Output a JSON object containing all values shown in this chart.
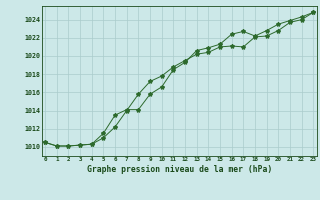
{
  "x_labels": [
    "0",
    "1",
    "2",
    "3",
    "4",
    "5",
    "6",
    "7",
    "8",
    "9",
    "10",
    "11",
    "12",
    "13",
    "14",
    "15",
    "16",
    "17",
    "18",
    "19",
    "20",
    "21",
    "22",
    "23"
  ],
  "series1": [
    1010.5,
    1010.1,
    1010.1,
    1010.2,
    1010.3,
    1011.0,
    1012.2,
    1014.0,
    1015.8,
    1017.2,
    1017.8,
    1018.8,
    1019.5,
    1020.2,
    1020.4,
    1021.0,
    1021.1,
    1021.0,
    1022.1,
    1022.2,
    1022.8,
    1023.7,
    1024.0,
    1024.8
  ],
  "series2": [
    1010.5,
    1010.1,
    1010.1,
    1010.2,
    1010.3,
    1011.5,
    1013.5,
    1014.1,
    1014.1,
    1015.8,
    1016.6,
    1018.5,
    1019.3,
    1020.6,
    1020.9,
    1021.3,
    1022.4,
    1022.7,
    1022.2,
    1022.8,
    1023.5,
    1023.9,
    1024.3,
    1024.8
  ],
  "line_color": "#2d6a2d",
  "bg_color": "#cce8e8",
  "grid_color": "#aacccc",
  "text_color": "#1a4a1a",
  "ylim_min": 1009.0,
  "ylim_max": 1025.5,
  "yticks": [
    1010,
    1012,
    1014,
    1016,
    1018,
    1020,
    1022,
    1024
  ],
  "xlabel": "Graphe pression niveau de la mer (hPa)"
}
